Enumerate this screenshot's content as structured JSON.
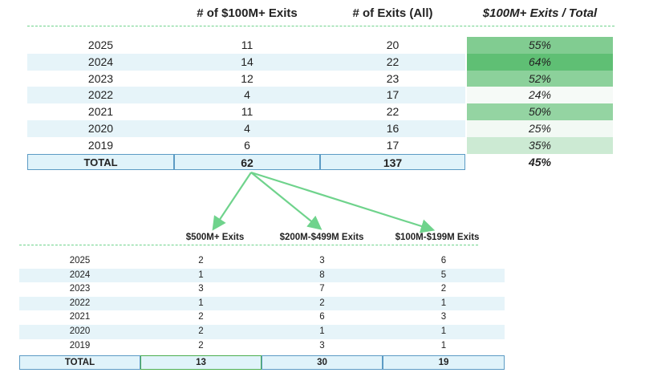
{
  "top": {
    "headers": {
      "exits_100m": "# of $100M+ Exits",
      "exits_all": "# of Exits (All)",
      "ratio": "$100M+ Exits / Total"
    },
    "rows": [
      {
        "year": "2025",
        "exits_100m": "11",
        "exits_all": "20",
        "ratio": "55%",
        "ratio_value": 0.55
      },
      {
        "year": "2024",
        "exits_100m": "14",
        "exits_all": "22",
        "ratio": "64%",
        "ratio_value": 0.64
      },
      {
        "year": "2023",
        "exits_100m": "12",
        "exits_all": "23",
        "ratio": "52%",
        "ratio_value": 0.52
      },
      {
        "year": "2022",
        "exits_100m": "4",
        "exits_all": "17",
        "ratio": "24%",
        "ratio_value": 0.24
      },
      {
        "year": "2021",
        "exits_100m": "11",
        "exits_all": "22",
        "ratio": "50%",
        "ratio_value": 0.5
      },
      {
        "year": "2020",
        "exits_100m": "4",
        "exits_all": "16",
        "ratio": "25%",
        "ratio_value": 0.25
      },
      {
        "year": "2019",
        "exits_100m": "6",
        "exits_all": "17",
        "ratio": "35%",
        "ratio_value": 0.35
      }
    ],
    "total": {
      "label": "TOTAL",
      "exits_100m": "62",
      "exits_all": "137",
      "ratio": "45%"
    }
  },
  "bottom": {
    "headers": {
      "exits_500m": "$500M+ Exits",
      "exits_200m": "$200M-$499M Exits",
      "exits_100m": "$100M-$199M Exits"
    },
    "rows": [
      {
        "year": "2025",
        "exits_500m": "2",
        "exits_200m": "3",
        "exits_100m": "6"
      },
      {
        "year": "2024",
        "exits_500m": "1",
        "exits_200m": "8",
        "exits_100m": "5"
      },
      {
        "year": "2023",
        "exits_500m": "3",
        "exits_200m": "7",
        "exits_100m": "2"
      },
      {
        "year": "2022",
        "exits_500m": "1",
        "exits_200m": "2",
        "exits_100m": "1"
      },
      {
        "year": "2021",
        "exits_500m": "2",
        "exits_200m": "6",
        "exits_100m": "3"
      },
      {
        "year": "2020",
        "exits_500m": "2",
        "exits_200m": "1",
        "exits_100m": "1"
      },
      {
        "year": "2019",
        "exits_500m": "2",
        "exits_200m": "3",
        "exits_100m": "1"
      }
    ],
    "total": {
      "label": "TOTAL",
      "exits_500m": "13",
      "exits_200m": "30",
      "exits_100m": "19"
    }
  },
  "colors": {
    "accent_green": "#6fd38c",
    "heat_high": "#5fbf74",
    "row_shade": "#e6f4f9",
    "total_border": "#5c9bc4"
  }
}
